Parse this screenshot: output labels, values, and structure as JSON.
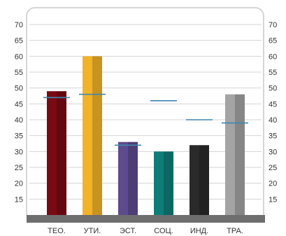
{
  "chart_data": {
    "type": "bar",
    "title": "",
    "xlabel": "",
    "ylabel": "",
    "categories": [
      "ТЕО.",
      "УТИ.",
      "ЭСТ.",
      "СОЦ.",
      "ИНД.",
      "ТРА."
    ],
    "values": [
      49,
      60,
      33,
      30,
      32,
      48
    ],
    "colors": [
      "#7a0a12",
      "#f3b328",
      "#5e4a8e",
      "#0e7d78",
      "#2a2a2a",
      "#a4a4a4"
    ],
    "marker_series": {
      "values": [
        47,
        48,
        32,
        46,
        40,
        39
      ],
      "color": "#3f86b0"
    },
    "ylim": [
      10,
      70
    ],
    "yticks": [
      "15",
      "20",
      "25",
      "30",
      "35",
      "40",
      "45",
      "50",
      "55",
      "60",
      "65",
      "70"
    ],
    "grid": true,
    "legend": "none"
  }
}
